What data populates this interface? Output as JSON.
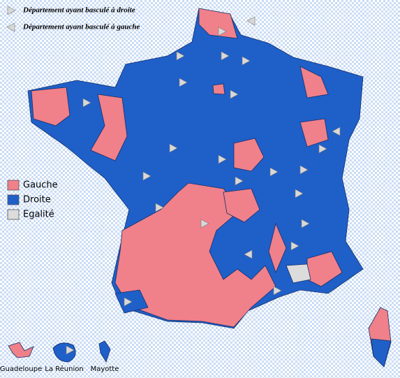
{
  "map": {
    "switch_legend": [
      {
        "label": "Département ayant basculé à droite"
      },
      {
        "label": "Département ayant basculé à gauche"
      }
    ],
    "legend": [
      {
        "label": "Gauche",
        "color": "#f0808a"
      },
      {
        "label": "Droite",
        "color": "#1f5fc8"
      },
      {
        "label": "Egalité",
        "color": "#dcdcdc"
      }
    ],
    "insets": [
      {
        "label": "Guadeloupe"
      },
      {
        "label": "La Réunion"
      },
      {
        "label": "Mayotte"
      }
    ]
  }
}
